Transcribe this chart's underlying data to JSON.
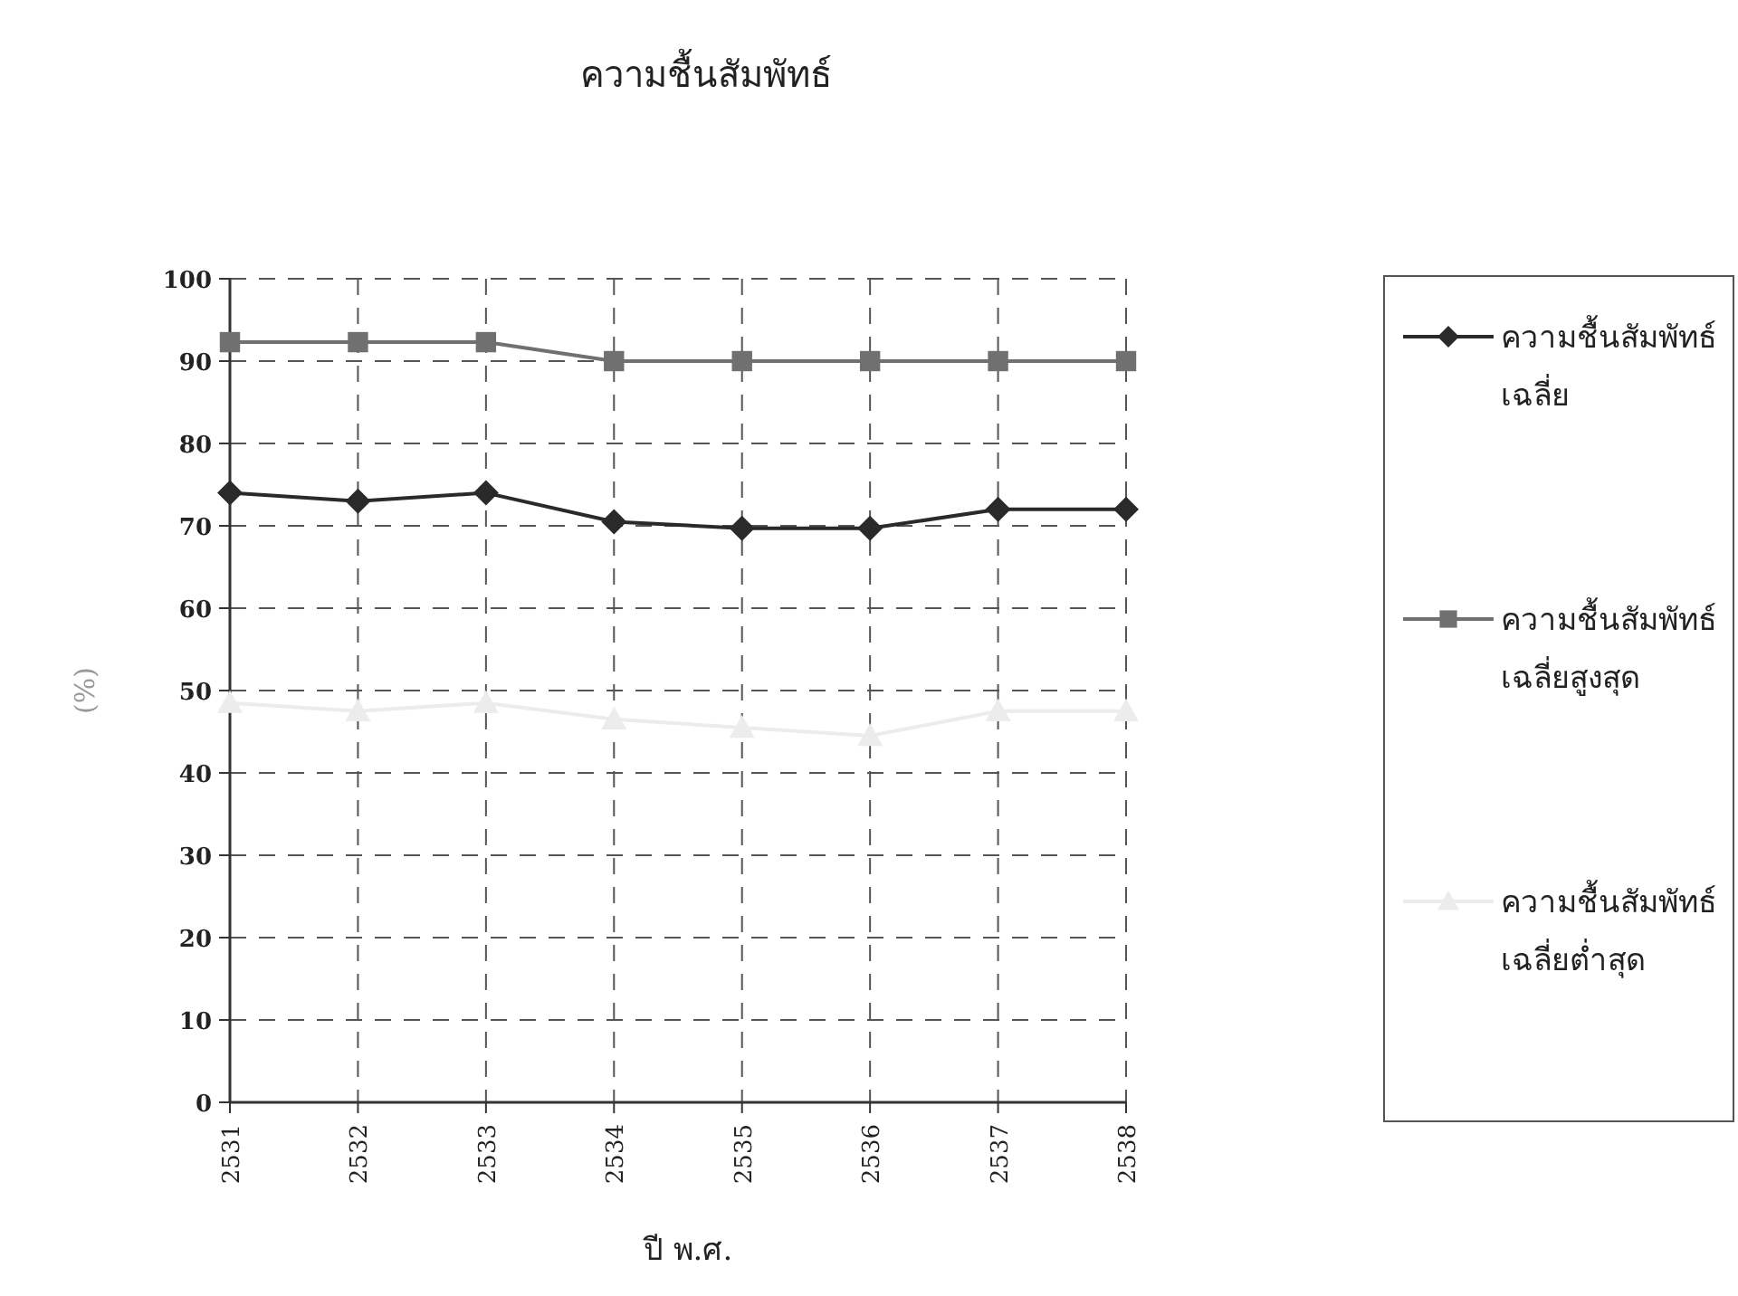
{
  "chart_data": {
    "type": "line",
    "title": "ความชื้นสัมพัทธ์",
    "xlabel": "ปี พ.ศ.",
    "ylabel": "(%)",
    "categories": [
      "2531",
      "2532",
      "2533",
      "2534",
      "2535",
      "2536",
      "2537",
      "2538"
    ],
    "series": [
      {
        "name": "ความชื้นสัมพัทธ์เฉลี่ย",
        "color": "#2a2a2a",
        "marker": "diamond",
        "values": [
          74,
          73,
          74,
          70.5,
          69.7,
          69.7,
          72,
          72
        ]
      },
      {
        "name": "ความชื้นสัมพัทธ์เฉลี่ยสูงสุด",
        "color": "#707070",
        "marker": "square",
        "values": [
          92.3,
          92.3,
          92.3,
          90,
          90,
          90,
          90,
          90
        ]
      },
      {
        "name": "ความชื้นสัมพัทธ์เฉลี่ยต่ำสุด",
        "color": "#ececec",
        "marker": "triangle",
        "values": [
          48.5,
          47.5,
          48.5,
          46.5,
          45.5,
          44.5,
          47.5,
          47.5
        ]
      }
    ],
    "ylim": [
      0,
      100
    ],
    "yticks": [
      0,
      10,
      20,
      30,
      40,
      50,
      60,
      70,
      80,
      90,
      100
    ],
    "grid": true,
    "legend": "right",
    "line_style": "solid"
  }
}
